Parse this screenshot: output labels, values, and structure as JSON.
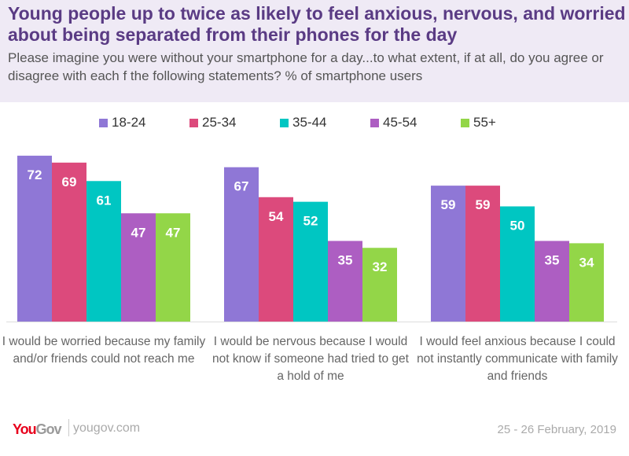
{
  "header": {
    "title": "Young people up to twice as likely to feel anxious, nervous, and worried about being separated from their phones for the day",
    "subtitle": "Please imagine you were without your smartphone for a day...to what extent, if at all, do you agree or disagree with each f the following statements? % of smartphone users"
  },
  "chart_data": {
    "type": "bar",
    "title": "Young people up to twice as likely to feel anxious, nervous, and worried about being separated from their phones for the day",
    "categories": [
      "I would be worried because my family and/or friends could not reach me",
      "I would be nervous because I would not know if someone had tried to get a hold of me",
      "I would feel anxious because I could not instantly communicate with family and friends"
    ],
    "series": [
      {
        "name": "18-24",
        "color": "#8f77d6",
        "values": [
          72,
          67,
          59
        ]
      },
      {
        "name": "25-34",
        "color": "#dc4a7c",
        "values": [
          69,
          54,
          59
        ]
      },
      {
        "name": "35-44",
        "color": "#00c6c2",
        "values": [
          61,
          52,
          50
        ]
      },
      {
        "name": "45-54",
        "color": "#ad5ec2",
        "values": [
          47,
          35,
          35
        ]
      },
      {
        "name": "55+",
        "color": "#93d648",
        "values": [
          47,
          32,
          34
        ]
      }
    ],
    "ylim": [
      0,
      80
    ],
    "legend": "top",
    "grid": false
  },
  "footer": {
    "logo_you": "You",
    "logo_gov": "Gov",
    "site": "yougov.com",
    "date": "25 - 26 February, 2019"
  }
}
